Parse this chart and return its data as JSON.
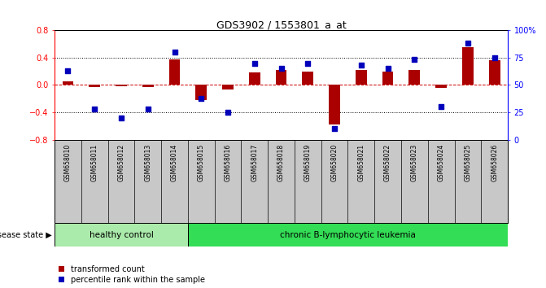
{
  "title": "GDS3902 / 1553801_a_at",
  "samples": [
    "GSM658010",
    "GSM658011",
    "GSM658012",
    "GSM658013",
    "GSM658014",
    "GSM658015",
    "GSM658016",
    "GSM658017",
    "GSM658018",
    "GSM658019",
    "GSM658020",
    "GSM658021",
    "GSM658022",
    "GSM658023",
    "GSM658024",
    "GSM658025",
    "GSM658026"
  ],
  "red_values": [
    0.05,
    -0.03,
    -0.02,
    -0.03,
    0.37,
    -0.22,
    -0.07,
    0.18,
    0.22,
    0.2,
    -0.58,
    0.22,
    0.2,
    0.22,
    -0.04,
    0.55,
    0.36
  ],
  "blue_pcts": [
    63,
    28,
    20,
    28,
    80,
    38,
    25,
    70,
    65,
    70,
    10,
    68,
    65,
    73,
    30,
    88,
    75
  ],
  "ylim_left": [
    -0.8,
    0.8
  ],
  "ylim_right": [
    0,
    100
  ],
  "yticks_left": [
    -0.8,
    -0.4,
    0.0,
    0.4,
    0.8
  ],
  "yticks_right": [
    0,
    25,
    50,
    75,
    100
  ],
  "hlines": [
    -0.4,
    0.0,
    0.4
  ],
  "healthy_count": 5,
  "bar_color": "#AA0000",
  "dot_color": "#0000BB",
  "healthy_bg": "#AAEAAA",
  "leukemia_bg": "#33DD55",
  "label_bg": "#C8C8C8",
  "title_color": "black",
  "healthy_label": "healthy control",
  "leukemia_label": "chronic B-lymphocytic leukemia",
  "disease_state_label": "disease state",
  "legend_red": "transformed count",
  "legend_blue": "percentile rank within the sample"
}
